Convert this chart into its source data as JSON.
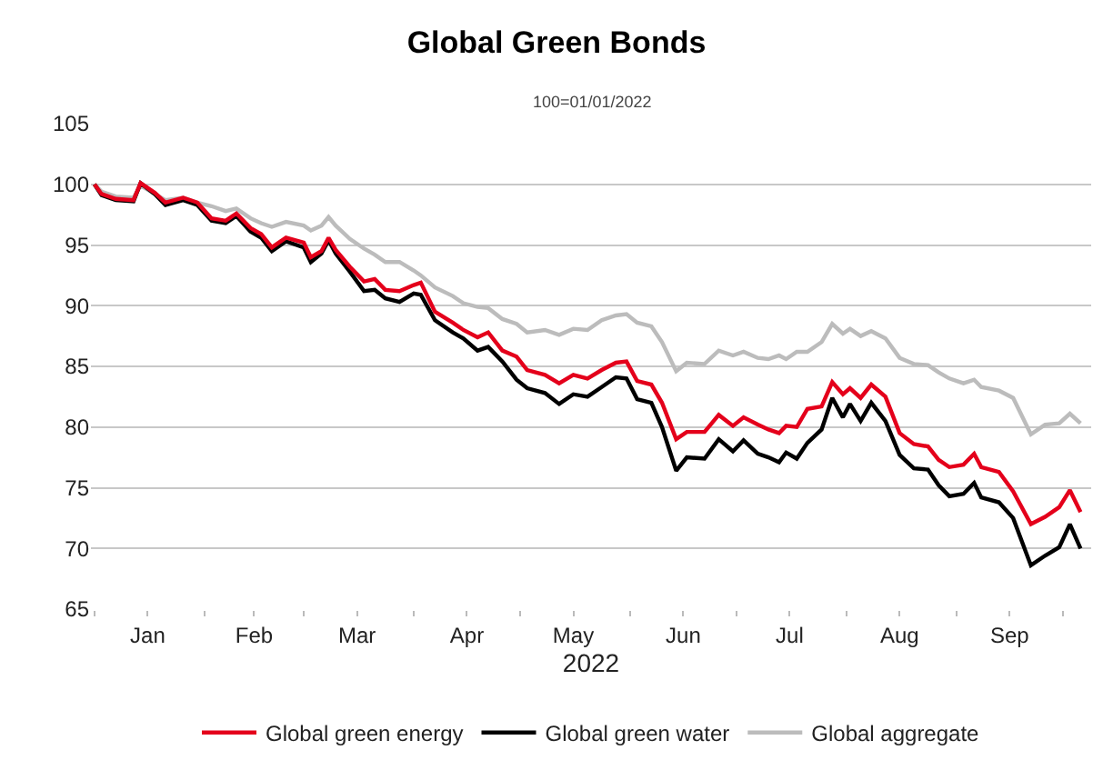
{
  "chart_data": {
    "type": "line",
    "title": "Global Green Bonds",
    "subtitle": "100=01/01/2022",
    "xlabel": "2022",
    "x": [
      "2022-01-01",
      "2022-01-03",
      "2022-01-07",
      "2022-01-12",
      "2022-01-14",
      "2022-01-18",
      "2022-01-21",
      "2022-01-26",
      "2022-01-30",
      "2022-02-03",
      "2022-02-07",
      "2022-02-10",
      "2022-02-14",
      "2022-02-17",
      "2022-02-20",
      "2022-02-24",
      "2022-03-01",
      "2022-03-03",
      "2022-03-06",
      "2022-03-08",
      "2022-03-10",
      "2022-03-14",
      "2022-03-18",
      "2022-03-21",
      "2022-03-24",
      "2022-03-28",
      "2022-04-01",
      "2022-04-03",
      "2022-04-07",
      "2022-04-12",
      "2022-04-15",
      "2022-04-19",
      "2022-04-22",
      "2022-04-26",
      "2022-04-30",
      "2022-05-03",
      "2022-05-08",
      "2022-05-12",
      "2022-05-16",
      "2022-05-20",
      "2022-05-24",
      "2022-05-28",
      "2022-05-31",
      "2022-06-03",
      "2022-06-07",
      "2022-06-10",
      "2022-06-14",
      "2022-06-17",
      "2022-06-22",
      "2022-06-26",
      "2022-06-30",
      "2022-07-03",
      "2022-07-07",
      "2022-07-10",
      "2022-07-13",
      "2022-07-15",
      "2022-07-18",
      "2022-07-21",
      "2022-07-25",
      "2022-07-28",
      "2022-07-31",
      "2022-08-02",
      "2022-08-05",
      "2022-08-08",
      "2022-08-12",
      "2022-08-16",
      "2022-08-20",
      "2022-08-24",
      "2022-08-27",
      "2022-08-30",
      "2022-09-03",
      "2022-09-06",
      "2022-09-08",
      "2022-09-13",
      "2022-09-17",
      "2022-09-22",
      "2022-09-26",
      "2022-09-30",
      "2022-10-03",
      "2022-10-06"
    ],
    "series": [
      {
        "name": "Global green energy",
        "color": "#e4001b",
        "values": [
          100,
          99.2,
          98.8,
          98.7,
          100.1,
          99.3,
          98.5,
          98.9,
          98.5,
          97.2,
          97.0,
          97.6,
          96.4,
          95.9,
          94.8,
          95.6,
          95.2,
          94.0,
          94.5,
          95.6,
          94.6,
          93.2,
          92.0,
          92.2,
          91.3,
          91.2,
          91.7,
          91.9,
          89.5,
          88.6,
          88.0,
          87.4,
          87.8,
          86.3,
          85.8,
          84.7,
          84.3,
          83.6,
          84.3,
          84.0,
          84.7,
          85.3,
          85.4,
          83.8,
          83.5,
          82.0,
          79.0,
          79.6,
          79.6,
          81.0,
          80.1,
          80.8,
          80.2,
          79.8,
          79.5,
          80.1,
          80.0,
          81.5,
          81.7,
          83.7,
          82.7,
          83.2,
          82.4,
          83.5,
          82.5,
          79.5,
          78.6,
          78.4,
          77.3,
          76.7,
          76.9,
          77.8,
          76.7,
          76.3,
          74.7,
          72.0,
          72.6,
          73.4,
          74.8,
          73.0
        ]
      },
      {
        "name": "Global green water",
        "color": "#000000",
        "values": [
          100,
          99.1,
          98.7,
          98.6,
          100.1,
          99.2,
          98.3,
          98.7,
          98.3,
          97.0,
          96.8,
          97.4,
          96.1,
          95.6,
          94.5,
          95.3,
          94.8,
          93.6,
          94.3,
          95.4,
          94.3,
          92.8,
          91.2,
          91.3,
          90.6,
          90.3,
          91.0,
          90.9,
          88.8,
          87.8,
          87.3,
          86.3,
          86.6,
          85.4,
          83.9,
          83.2,
          82.8,
          81.9,
          82.7,
          82.5,
          83.3,
          84.1,
          84.0,
          82.3,
          82.0,
          80.0,
          76.4,
          77.5,
          77.4,
          79.0,
          78.0,
          78.9,
          77.8,
          77.5,
          77.1,
          77.9,
          77.4,
          78.7,
          79.8,
          82.4,
          80.8,
          81.9,
          80.5,
          82.0,
          80.5,
          77.7,
          76.6,
          76.5,
          75.2,
          74.3,
          74.5,
          75.4,
          74.2,
          73.8,
          72.5,
          68.6,
          69.4,
          70.1,
          72.0,
          70.0
        ]
      },
      {
        "name": "Global aggregate",
        "color": "#bcbcbc",
        "values": [
          100,
          99.4,
          99.0,
          98.9,
          99.9,
          99.2,
          98.7,
          98.9,
          98.5,
          98.2,
          97.8,
          98.0,
          97.2,
          96.8,
          96.5,
          96.9,
          96.6,
          96.2,
          96.6,
          97.3,
          96.6,
          95.5,
          94.7,
          94.2,
          93.6,
          93.6,
          92.9,
          92.5,
          91.5,
          90.8,
          90.2,
          89.9,
          89.8,
          88.9,
          88.5,
          87.8,
          88.0,
          87.6,
          88.1,
          88.0,
          88.8,
          89.2,
          89.3,
          88.6,
          88.3,
          87.0,
          84.6,
          85.3,
          85.2,
          86.3,
          85.9,
          86.2,
          85.7,
          85.6,
          85.9,
          85.6,
          86.2,
          86.2,
          87.0,
          88.5,
          87.7,
          88.1,
          87.5,
          87.9,
          87.3,
          85.7,
          85.2,
          85.1,
          84.5,
          84.0,
          83.6,
          83.9,
          83.3,
          83.0,
          82.4,
          79.4,
          80.2,
          80.3,
          81.1,
          80.3
        ]
      }
    ],
    "xlim": [
      "2021-12-31",
      "2022-10-09"
    ],
    "xticks": [
      {
        "value": "2022-01-01",
        "label": null
      },
      {
        "value": "2022-01-16",
        "label": "Jan"
      },
      {
        "value": "2022-02-01",
        "label": null
      },
      {
        "value": "2022-02-15",
        "label": "Feb"
      },
      {
        "value": "2022-03-01",
        "label": null
      },
      {
        "value": "2022-03-16",
        "label": "Mar"
      },
      {
        "value": "2022-04-01",
        "label": null
      },
      {
        "value": "2022-04-16",
        "label": "Apr"
      },
      {
        "value": "2022-05-01",
        "label": null
      },
      {
        "value": "2022-05-16",
        "label": "May"
      },
      {
        "value": "2022-06-01",
        "label": null
      },
      {
        "value": "2022-06-16",
        "label": "Jun"
      },
      {
        "value": "2022-07-01",
        "label": null
      },
      {
        "value": "2022-07-16",
        "label": "Jul"
      },
      {
        "value": "2022-08-01",
        "label": null
      },
      {
        "value": "2022-08-16",
        "label": "Aug"
      },
      {
        "value": "2022-09-01",
        "label": null
      },
      {
        "value": "2022-09-16",
        "label": "Sep"
      },
      {
        "value": "2022-10-01",
        "label": null
      }
    ],
    "ylim": [
      65,
      105
    ],
    "yticks": [
      65,
      70,
      75,
      80,
      85,
      90,
      95,
      100,
      105
    ],
    "grid": "y",
    "legend": "bottom",
    "marker": "none",
    "line_style": "solid"
  }
}
